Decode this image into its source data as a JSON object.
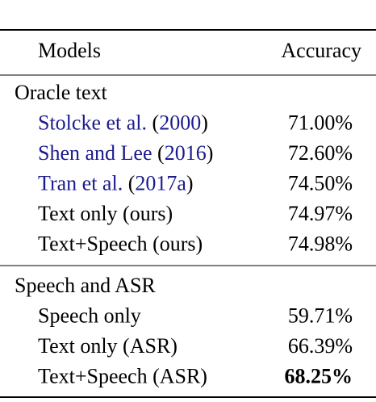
{
  "table": {
    "header": [
      "Models",
      "Accuracy"
    ],
    "link_color": "#1b1b8f",
    "sections": [
      {
        "title": "Oracle text",
        "rows": [
          {
            "model": [
              {
                "text": "Stolcke et al. ",
                "link": true
              },
              {
                "text": "(",
                "link": false
              },
              {
                "text": "2000",
                "link": true
              },
              {
                "text": ")",
                "link": false
              }
            ],
            "accuracy": "71.00%",
            "bold": false
          },
          {
            "model": [
              {
                "text": "Shen and Lee ",
                "link": true
              },
              {
                "text": "(",
                "link": false
              },
              {
                "text": "2016",
                "link": true
              },
              {
                "text": ")",
                "link": false
              }
            ],
            "accuracy": "72.60%",
            "bold": false
          },
          {
            "model": [
              {
                "text": "Tran et al. ",
                "link": true
              },
              {
                "text": "(",
                "link": false
              },
              {
                "text": "2017a",
                "link": true
              },
              {
                "text": ")",
                "link": false
              }
            ],
            "accuracy": "74.50%",
            "bold": false
          },
          {
            "model": [
              {
                "text": "Text only (ours)",
                "link": false
              }
            ],
            "accuracy": "74.97%",
            "bold": false
          },
          {
            "model": [
              {
                "text": "Text+Speech (ours)",
                "link": false
              }
            ],
            "accuracy": "74.98%",
            "bold": false
          }
        ]
      },
      {
        "title": "Speech and ASR",
        "rows": [
          {
            "model": [
              {
                "text": "Speech only",
                "link": false
              }
            ],
            "accuracy": "59.71%",
            "bold": false
          },
          {
            "model": [
              {
                "text": "Text only (ASR)",
                "link": false
              }
            ],
            "accuracy": "66.39%",
            "bold": false
          },
          {
            "model": [
              {
                "text": "Text+Speech (ASR)",
                "link": false
              }
            ],
            "accuracy": "68.25%",
            "bold": true
          }
        ]
      }
    ]
  }
}
